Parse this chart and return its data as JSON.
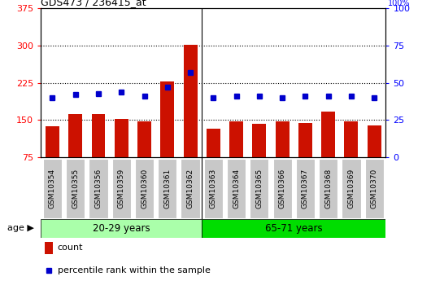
{
  "title": "GDS473 / 236415_at",
  "samples": [
    "GSM10354",
    "GSM10355",
    "GSM10356",
    "GSM10359",
    "GSM10360",
    "GSM10361",
    "GSM10362",
    "GSM10363",
    "GSM10364",
    "GSM10365",
    "GSM10366",
    "GSM10367",
    "GSM10368",
    "GSM10369",
    "GSM10370"
  ],
  "counts": [
    138,
    162,
    163,
    152,
    147,
    228,
    302,
    132,
    147,
    143,
    147,
    145,
    168,
    147,
    140
  ],
  "percentiles": [
    40,
    42,
    43,
    44,
    41,
    47,
    57,
    40,
    41,
    41,
    40,
    41,
    41,
    41,
    40
  ],
  "group1_label": "20-29 years",
  "group2_label": "65-71 years",
  "group1_count": 7,
  "group2_count": 8,
  "ylim_left": [
    75,
    375
  ],
  "ylim_right": [
    0,
    100
  ],
  "yticks_left": [
    75,
    150,
    225,
    300,
    375
  ],
  "yticks_right": [
    0,
    25,
    50,
    75,
    100
  ],
  "bar_color": "#CC1100",
  "dot_color": "#0000CC",
  "group1_bg": "#AAFFAA",
  "group2_bg": "#00DD00",
  "ticklabel_bg": "#C8C8C8",
  "legend_count_label": "count",
  "legend_pct_label": "percentile rank within the sample",
  "age_label": "age"
}
